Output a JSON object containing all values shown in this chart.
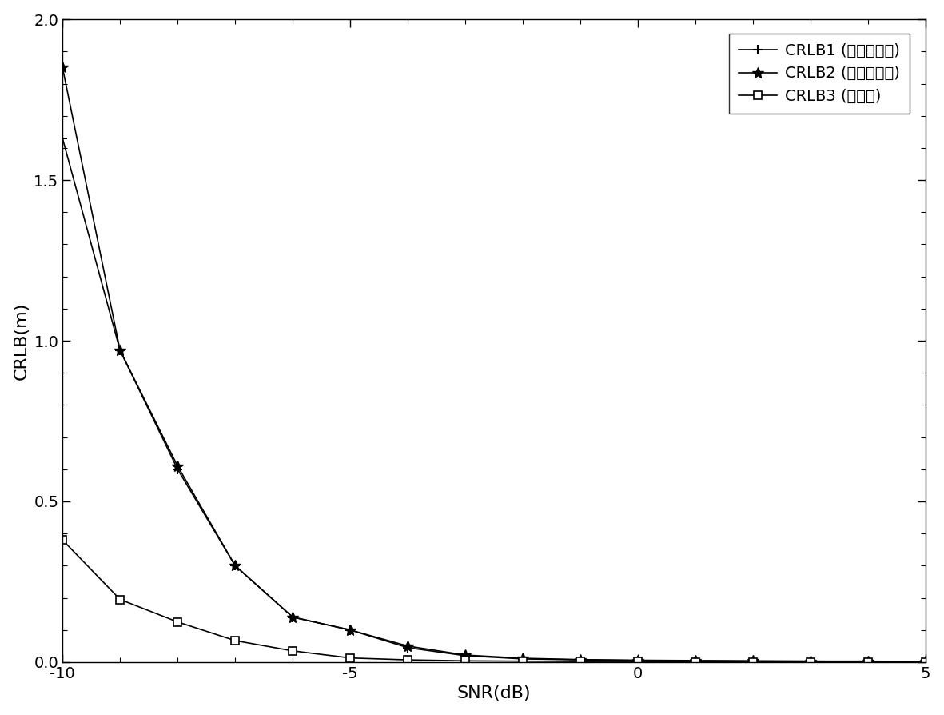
{
  "snr": [
    -10,
    -9,
    -8,
    -7,
    -6,
    -5,
    -4,
    -3,
    -2,
    -1,
    0,
    1,
    2,
    3,
    4,
    5
  ],
  "crlb1": [
    1.63,
    0.97,
    0.6,
    0.3,
    0.14,
    0.1,
    0.045,
    0.02,
    0.01,
    0.007,
    0.005,
    0.004,
    0.003,
    0.003,
    0.002,
    0.002
  ],
  "crlb2": [
    1.85,
    0.97,
    0.61,
    0.3,
    0.14,
    0.1,
    0.05,
    0.022,
    0.012,
    0.008,
    0.006,
    0.005,
    0.004,
    0.003,
    0.003,
    0.002
  ],
  "crlb3": [
    0.38,
    0.195,
    0.125,
    0.067,
    0.035,
    0.013,
    0.007,
    0.004,
    0.003,
    0.002,
    0.002,
    0.001,
    0.001,
    0.001,
    0.001,
    0.001
  ],
  "xlabel": "SNR(dB)",
  "ylabel": "CRLB(m)",
  "xlim": [
    -10,
    5
  ],
  "ylim": [
    0,
    2
  ],
  "yticks": [
    0,
    0.5,
    1,
    1.5,
    2
  ],
  "xticks": [
    -10,
    -5,
    0,
    5
  ],
  "legend1": "CRLB1 (第一种方式)",
  "legend2": "CRLB2 (第二种方式)",
  "legend3": "CRLB3 (本发明)",
  "line_color": "black",
  "background_color": "white"
}
